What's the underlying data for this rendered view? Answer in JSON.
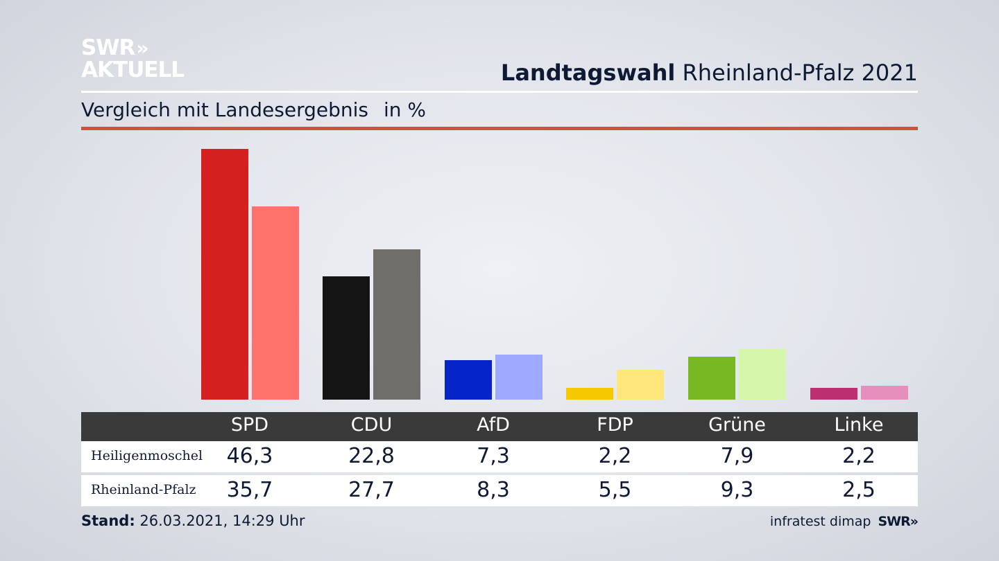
{
  "brand": {
    "logo_line1": "SWR",
    "logo_line2": "AKTUELL",
    "logo_chevrons": "»"
  },
  "header": {
    "title_bold": "Landtagswahl",
    "title_rest": "Rheinland-Pfalz 2021"
  },
  "subtitle": {
    "text": "Vergleich mit Landesergebnis",
    "unit": "in %"
  },
  "chart_data": {
    "type": "bar",
    "title": "Landtagswahl Rheinland-Pfalz 2021",
    "subtitle": "Vergleich mit Landesergebnis in %",
    "categories": [
      "SPD",
      "CDU",
      "AfD",
      "FDP",
      "Grüne",
      "Linke"
    ],
    "series": [
      {
        "name": "Heiligenmoschel",
        "values": [
          46.3,
          22.8,
          7.3,
          2.2,
          7.9,
          2.2
        ],
        "colors": [
          "#d52020",
          "#141414",
          "#0525c8",
          "#f5c800",
          "#78b822",
          "#bc2f70"
        ]
      },
      {
        "name": "Rheinland-Pfalz",
        "values": [
          35.7,
          27.7,
          8.3,
          5.5,
          9.3,
          2.5
        ],
        "colors": [
          "#ff716b",
          "#706e6b",
          "#9daaff",
          "#fee67c",
          "#d5f6ab",
          "#e68fbd"
        ]
      }
    ],
    "ylim": [
      0,
      46.3
    ],
    "grid": false,
    "legend": "table-below"
  },
  "table": {
    "headers": [
      "SPD",
      "CDU",
      "AfD",
      "FDP",
      "Grüne",
      "Linke"
    ],
    "rows": [
      {
        "label": "Heiligenmoschel",
        "values": [
          "46,3",
          "22,8",
          "7,3",
          "2,2",
          "7,9",
          "2,2"
        ]
      },
      {
        "label": "Rheinland-Pfalz",
        "values": [
          "35,7",
          "27,7",
          "8,3",
          "5,5",
          "9,3",
          "2,5"
        ]
      }
    ]
  },
  "footer": {
    "stand_label": "Stand:",
    "stand_value": "26.03.2021, 14:29 Uhr",
    "source": "infratest dimap",
    "source_brand": "SWR»"
  }
}
